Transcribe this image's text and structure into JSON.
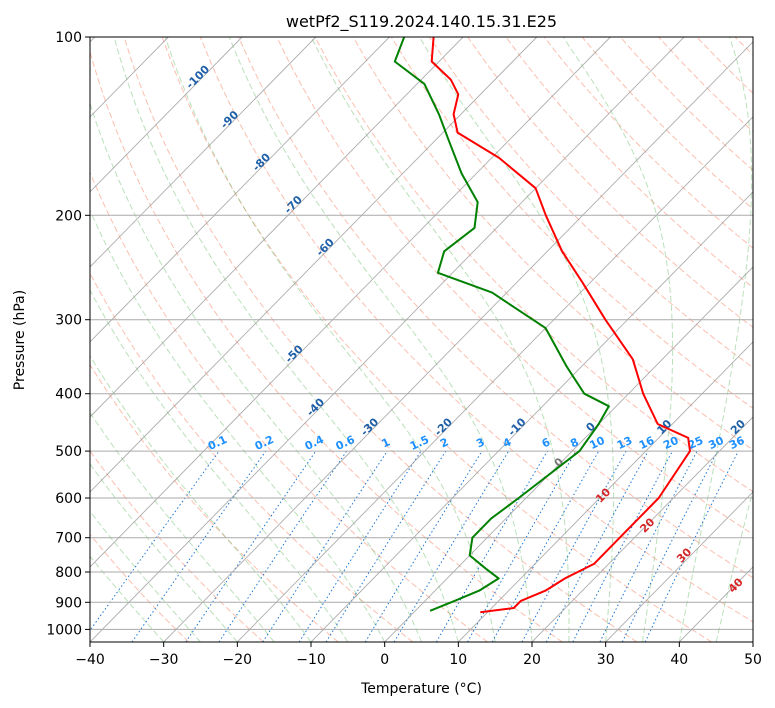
{
  "chart_data": {
    "type": "line",
    "title": "wetPf2_S119.2024.140.15.31.E25",
    "xlabel": "Temperature (°C)",
    "ylabel": "Pressure (hPa)",
    "xlim": [
      -40,
      50
    ],
    "ylim": [
      1050,
      100
    ],
    "y_scale": "log",
    "x_ticks": [
      -40,
      -30,
      -20,
      -10,
      0,
      10,
      20,
      30,
      40,
      50
    ],
    "y_ticks": [
      100,
      200,
      300,
      400,
      500,
      600,
      700,
      800,
      900,
      1000
    ],
    "grid": true,
    "skew_isotherms": [
      -100,
      -90,
      -80,
      -70,
      -60,
      -50,
      -40,
      -30,
      -20,
      -10,
      0,
      10,
      20,
      30,
      40
    ],
    "mixing_ratio_labels": [
      "0.1",
      "0.2",
      "0.4",
      "0.6",
      "1",
      "1.5",
      "2",
      "3",
      "4",
      "6",
      "8",
      "10",
      "13",
      "16",
      "20",
      "25",
      "30",
      "36"
    ],
    "moist_adiabat_labels": [
      "0",
      "10",
      "20",
      "30",
      "40"
    ],
    "series": [
      {
        "color": "#ff0000",
        "points": [
          {
            "x": 9,
            "p": 935
          },
          {
            "x": 13,
            "p": 920
          },
          {
            "x": 13,
            "p": 895
          },
          {
            "x": 15,
            "p": 860
          },
          {
            "x": 16,
            "p": 820
          },
          {
            "x": 18,
            "p": 775
          },
          {
            "x": 18,
            "p": 700
          },
          {
            "x": 18,
            "p": 600
          },
          {
            "x": 16,
            "p": 500
          },
          {
            "x": 14,
            "p": 475
          },
          {
            "x": 8,
            "p": 450
          },
          {
            "x": 2,
            "p": 400
          },
          {
            "x": -4,
            "p": 350
          },
          {
            "x": -13,
            "p": 300
          },
          {
            "x": -21,
            "p": 260
          },
          {
            "x": -28,
            "p": 230
          },
          {
            "x": -35,
            "p": 200
          },
          {
            "x": -40,
            "p": 180
          },
          {
            "x": -49,
            "p": 160
          },
          {
            "x": -58,
            "p": 145
          },
          {
            "x": -61,
            "p": 135
          },
          {
            "x": -63,
            "p": 125
          },
          {
            "x": -66,
            "p": 118
          },
          {
            "x": -71,
            "p": 110
          },
          {
            "x": -74,
            "p": 100
          }
        ]
      },
      {
        "color": "#008000",
        "points": [
          {
            "x": 2,
            "p": 930
          },
          {
            "x": 4,
            "p": 895
          },
          {
            "x": 6,
            "p": 860
          },
          {
            "x": 7,
            "p": 820
          },
          {
            "x": 4,
            "p": 790
          },
          {
            "x": 0,
            "p": 750
          },
          {
            "x": -2,
            "p": 700
          },
          {
            "x": -2,
            "p": 650
          },
          {
            "x": -1,
            "p": 600
          },
          {
            "x": 1,
            "p": 500
          },
          {
            "x": 0,
            "p": 450
          },
          {
            "x": -1,
            "p": 420
          },
          {
            "x": -6,
            "p": 400
          },
          {
            "x": -12,
            "p": 360
          },
          {
            "x": -20,
            "p": 310
          },
          {
            "x": -32,
            "p": 270
          },
          {
            "x": -42,
            "p": 250
          },
          {
            "x": -44,
            "p": 230
          },
          {
            "x": -43,
            "p": 210
          },
          {
            "x": -46,
            "p": 190
          },
          {
            "x": -52,
            "p": 170
          },
          {
            "x": -58,
            "p": 150
          },
          {
            "x": -63,
            "p": 135
          },
          {
            "x": -69,
            "p": 120
          },
          {
            "x": -76,
            "p": 110
          },
          {
            "x": -78,
            "p": 100
          }
        ]
      }
    ]
  }
}
